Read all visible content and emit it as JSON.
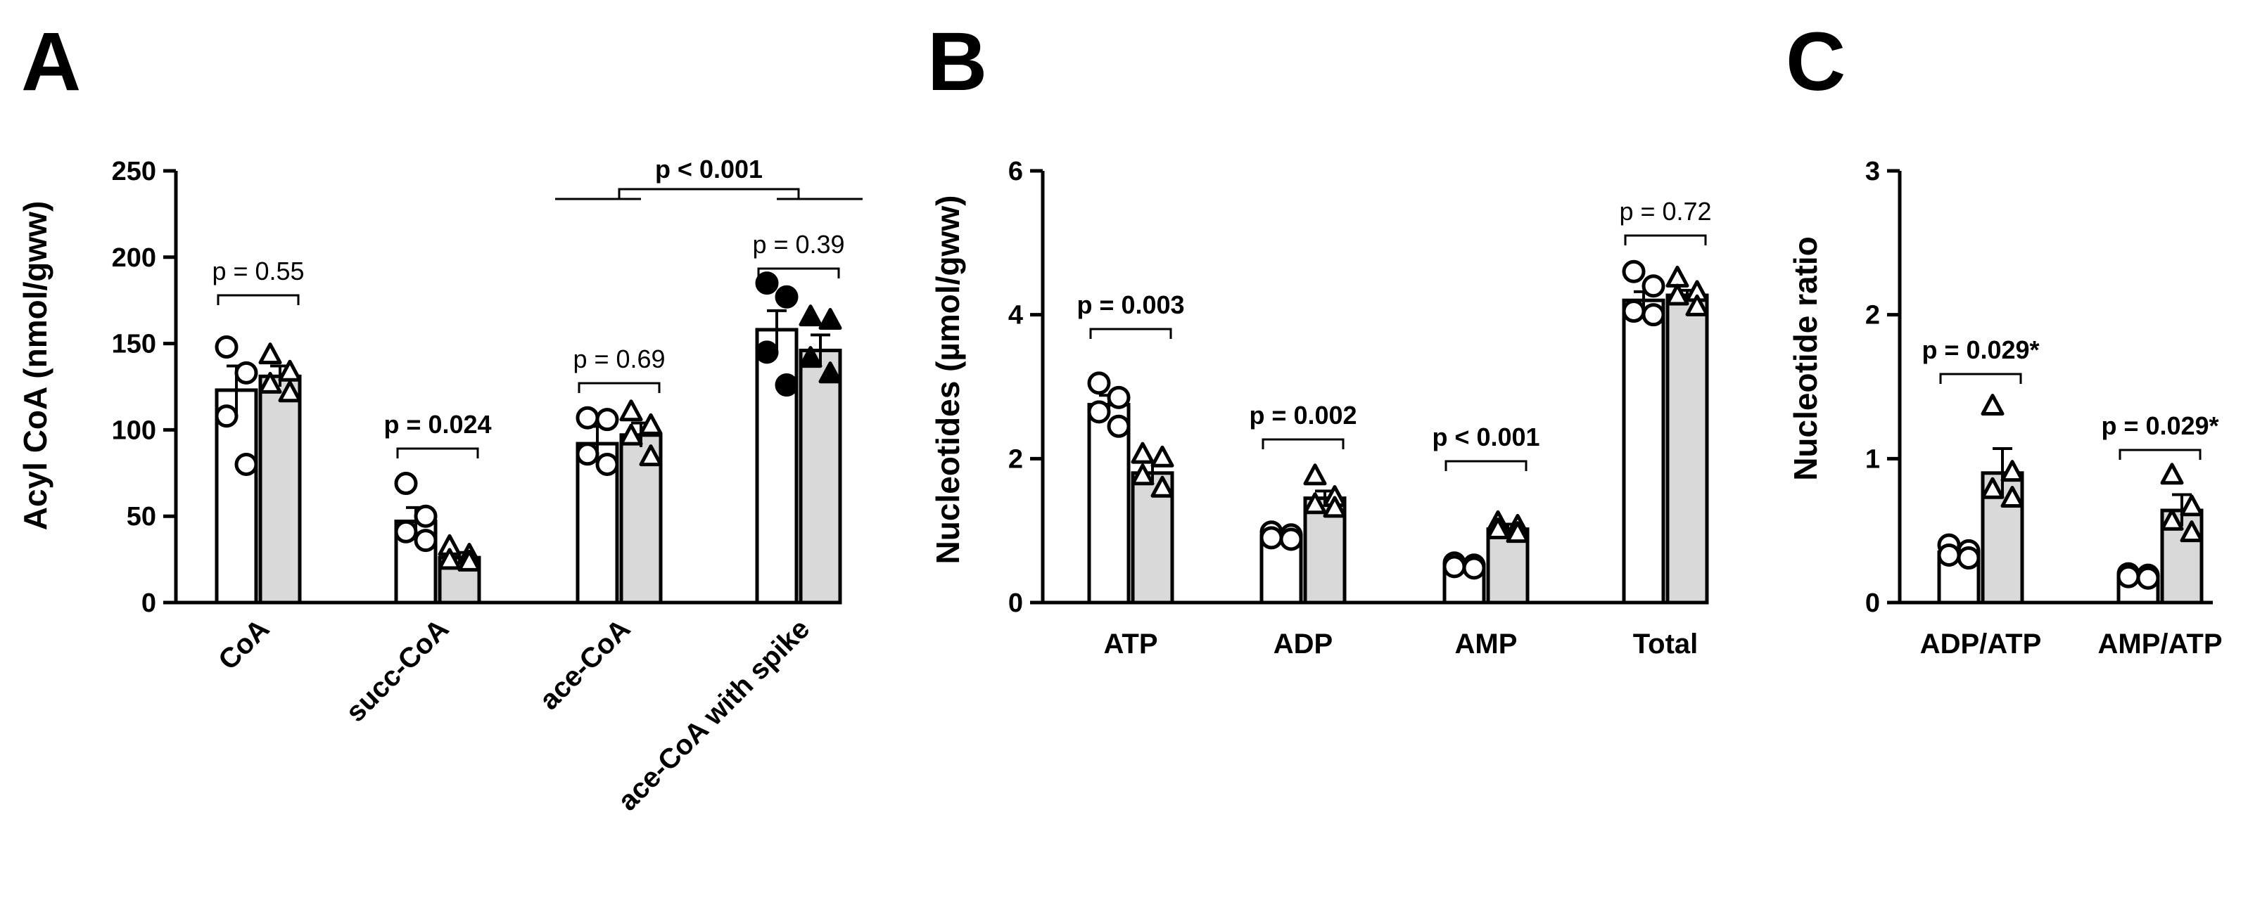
{
  "chart_data": [
    {
      "panel": "A",
      "type": "bar",
      "ylabel": "Acyl CoA (nmol/gww)",
      "ylim": [
        0,
        250
      ],
      "yticks": [
        0,
        50,
        100,
        150,
        200,
        250
      ],
      "categories": [
        "CoA",
        "succ-CoA",
        "ace-CoA",
        "ace-CoA with spike"
      ],
      "series": [
        {
          "fill": "#ffffff",
          "marker": [
            "circle-open",
            "circle-open",
            "circle-open",
            "circle-filled"
          ],
          "values": [
            123,
            47,
            92,
            158
          ],
          "errors": [
            14,
            8,
            10,
            11
          ],
          "points": [
            [
              148,
              133,
              108,
              80
            ],
            [
              69,
              50,
              41,
              36
            ],
            [
              107,
              106,
              86,
              80
            ],
            [
              185,
              177,
              145,
              126
            ]
          ]
        },
        {
          "fill": "#d9d9d9",
          "marker": [
            "triangle-open",
            "triangle-open",
            "triangle-open",
            "triangle-filled"
          ],
          "values": [
            131,
            26,
            97,
            146
          ],
          "errors": [
            6,
            3,
            7,
            9
          ],
          "points": [
            [
              143,
              133,
              126,
              121
            ],
            [
              32,
              27,
              24,
              23
            ],
            [
              110,
              102,
              96,
              84
            ],
            [
              165,
              163,
              141,
              132
            ]
          ]
        }
      ],
      "comparisons": [
        {
          "category": 0,
          "label": "p = 0.55",
          "bold": false
        },
        {
          "category": 1,
          "label": "p = 0.024",
          "bold": true
        },
        {
          "category": 2,
          "label": "p = 0.69",
          "bold": false
        },
        {
          "category": 3,
          "label": "p = 0.39",
          "bold": false
        },
        {
          "between": [
            2,
            3
          ],
          "label": "p < 0.001",
          "bold": true
        }
      ]
    },
    {
      "panel": "B",
      "type": "bar",
      "ylabel": "Nucleotides (µmol/gww)",
      "ylim": [
        0,
        6
      ],
      "yticks": [
        0,
        2,
        4,
        6
      ],
      "categories": [
        "ATP",
        "ADP",
        "AMP",
        "Total"
      ],
      "series": [
        {
          "fill": "#ffffff",
          "marker": [
            "circle-open",
            "circle-open",
            "circle-open",
            "circle-open"
          ],
          "values": [
            2.75,
            0.93,
            0.52,
            4.2
          ],
          "errors": [
            0.13,
            0.04,
            0.03,
            0.12
          ],
          "points": [
            [
              3.05,
              2.85,
              2.65,
              2.45
            ],
            [
              0.98,
              0.94,
              0.9,
              0.88
            ],
            [
              0.55,
              0.52,
              0.5,
              0.48
            ],
            [
              4.6,
              4.4,
              4.05,
              4.0
            ]
          ]
        },
        {
          "fill": "#d9d9d9",
          "marker": [
            "triangle-open",
            "triangle-open",
            "triangle-open",
            "triangle-open"
          ],
          "values": [
            1.8,
            1.45,
            1.02,
            4.27
          ],
          "errors": [
            0.15,
            0.1,
            0.07,
            0.07
          ],
          "points": [
            [
              2.05,
              2.0,
              1.75,
              1.58
            ],
            [
              1.75,
              1.45,
              1.35,
              1.3
            ],
            [
              1.1,
              1.05,
              1.0,
              0.95
            ],
            [
              4.5,
              4.3,
              4.25,
              4.1
            ]
          ]
        }
      ],
      "comparisons": [
        {
          "category": 0,
          "label": "p = 0.003",
          "bold": true
        },
        {
          "category": 1,
          "label": "p = 0.002",
          "bold": true
        },
        {
          "category": 2,
          "label": "p < 0.001",
          "bold": true
        },
        {
          "category": 3,
          "label": "p = 0.72",
          "bold": false
        }
      ]
    },
    {
      "panel": "C",
      "type": "bar",
      "ylabel": "Nucleotide ratio",
      "ylim": [
        0,
        3
      ],
      "yticks": [
        0,
        1,
        2,
        3
      ],
      "categories": [
        "ADP/ATP",
        "AMP/ATP"
      ],
      "series": [
        {
          "fill": "#ffffff",
          "marker": [
            "circle-open",
            "circle-open"
          ],
          "values": [
            0.35,
            0.18
          ],
          "errors": [
            0.03,
            0.01
          ],
          "points": [
            [
              0.4,
              0.36,
              0.33,
              0.31
            ],
            [
              0.2,
              0.19,
              0.18,
              0.17
            ]
          ]
        },
        {
          "fill": "#d9d9d9",
          "marker": [
            "triangle-open",
            "triangle-open"
          ],
          "values": [
            0.9,
            0.64
          ],
          "errors": [
            0.17,
            0.11
          ],
          "points": [
            [
              1.36,
              0.9,
              0.78,
              0.72
            ],
            [
              0.88,
              0.66,
              0.56,
              0.48
            ]
          ]
        }
      ],
      "comparisons": [
        {
          "category": 0,
          "label": "p = 0.029*",
          "bold": true
        },
        {
          "category": 1,
          "label": "p = 0.029*",
          "bold": true
        }
      ]
    }
  ]
}
